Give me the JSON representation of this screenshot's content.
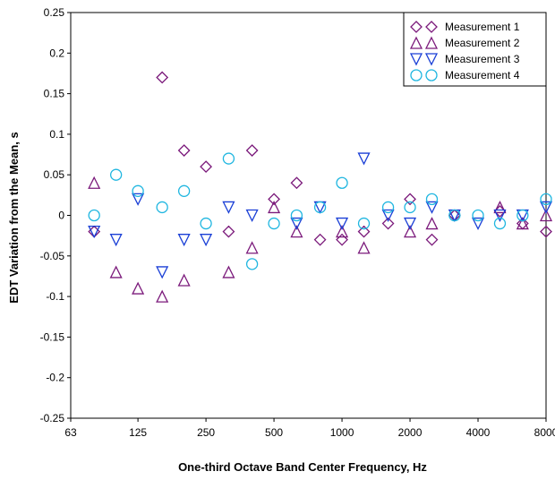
{
  "chart_data": {
    "type": "scatter",
    "title": "",
    "xlabel": "One-third Octave Band Center Frequency, Hz",
    "ylabel": "EDT Variation from the Mean, s",
    "x_scale": "log2",
    "xlim": [
      63,
      8000
    ],
    "ylim": [
      -0.25,
      0.25
    ],
    "x_ticks": [
      63,
      125,
      250,
      500,
      1000,
      2000,
      4000,
      8000
    ],
    "x_tick_labels": [
      "63",
      "125",
      "250",
      "500",
      "1000",
      "2000",
      "4000",
      "8000"
    ],
    "y_ticks": [
      -0.25,
      -0.2,
      -0.15,
      -0.1,
      -0.05,
      0,
      0.05,
      0.1,
      0.15,
      0.2,
      0.25
    ],
    "y_tick_labels": [
      "-0.25",
      "-0.2",
      "-0.15",
      "-0.1",
      "-0.05",
      "0",
      "0.05",
      "0.1",
      "0.15",
      "0.2",
      "0.25"
    ],
    "grid": false,
    "legend_position": "top-right",
    "x": [
      80,
      100,
      125,
      160,
      200,
      250,
      315,
      400,
      500,
      630,
      800,
      1000,
      1250,
      1600,
      2000,
      2500,
      3150,
      4000,
      5000,
      6300,
      8000
    ],
    "series": [
      {
        "name": "Measurement 1",
        "marker": "diamond",
        "color": "#7B1A7B",
        "values": [
          -0.02,
          null,
          null,
          0.17,
          0.08,
          0.06,
          -0.02,
          0.08,
          0.02,
          0.04,
          -0.03,
          -0.03,
          -0.02,
          -0.01,
          0.02,
          -0.03,
          0.0,
          null,
          0.005,
          -0.01,
          -0.02
        ]
      },
      {
        "name": "Measurement 2",
        "marker": "triangle-up",
        "color": "#7B1A7B",
        "values": [
          0.04,
          -0.07,
          -0.09,
          -0.1,
          -0.08,
          null,
          -0.07,
          -0.04,
          0.01,
          -0.02,
          null,
          -0.02,
          -0.04,
          null,
          -0.02,
          -0.01,
          null,
          null,
          0.01,
          -0.01,
          0.0
        ]
      },
      {
        "name": "Measurement 3",
        "marker": "triangle-down",
        "color": "#1A3FD6",
        "values": [
          -0.02,
          -0.03,
          0.02,
          -0.07,
          -0.03,
          -0.03,
          0.01,
          0.0,
          null,
          -0.01,
          0.01,
          -0.01,
          0.07,
          0.0,
          -0.01,
          0.01,
          0.0,
          -0.01,
          0.0,
          0.0,
          0.01
        ]
      },
      {
        "name": "Measurement 4",
        "marker": "circle",
        "color": "#1FB6E0",
        "values": [
          0.0,
          0.05,
          0.03,
          0.01,
          0.03,
          -0.01,
          0.07,
          -0.06,
          -0.01,
          0.0,
          0.01,
          0.04,
          -0.01,
          0.01,
          0.01,
          0.02,
          0.0,
          0.0,
          -0.01,
          0.0,
          0.02
        ]
      }
    ]
  }
}
